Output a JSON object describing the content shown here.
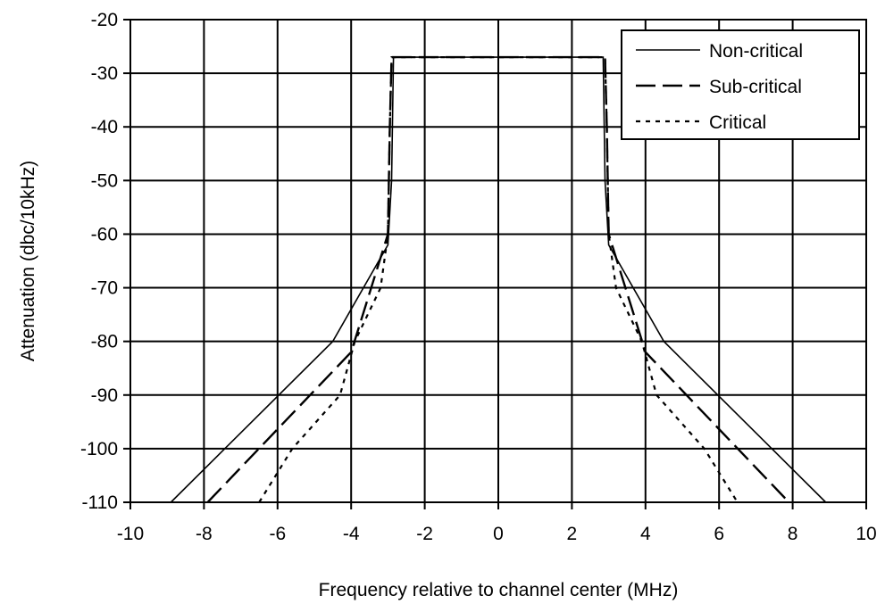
{
  "chart_data": {
    "type": "line",
    "title": "",
    "xlabel": "Frequency relative to channel center (MHz)",
    "ylabel": "Attenuation (dbc/10kHz)",
    "xlim": [
      -10,
      10
    ],
    "ylim": [
      -110,
      -20
    ],
    "xticks": [
      -10,
      -8,
      -6,
      -4,
      -2,
      0,
      2,
      4,
      6,
      8,
      10
    ],
    "yticks": [
      -20,
      -30,
      -40,
      -50,
      -60,
      -70,
      -80,
      -90,
      -100,
      -110
    ],
    "grid": true,
    "legend_position": "top-right",
    "series": [
      {
        "name": "Non-critical",
        "style": "solid",
        "points": [
          [
            -8.9,
            -110
          ],
          [
            -4.5,
            -80
          ],
          [
            -3.0,
            -62
          ],
          [
            -2.9,
            -50
          ],
          [
            -2.85,
            -27
          ],
          [
            2.85,
            -27
          ],
          [
            2.9,
            -50
          ],
          [
            3.0,
            -62
          ],
          [
            4.5,
            -80
          ],
          [
            8.9,
            -110
          ]
        ]
      },
      {
        "name": "Sub-critical",
        "style": "dashed",
        "points": [
          [
            -7.9,
            -110
          ],
          [
            -4.0,
            -82
          ],
          [
            -3.0,
            -60
          ],
          [
            -2.95,
            -40
          ],
          [
            -2.9,
            -27
          ],
          [
            2.9,
            -27
          ],
          [
            2.95,
            -40
          ],
          [
            3.0,
            -60
          ],
          [
            4.0,
            -82
          ],
          [
            7.9,
            -110
          ]
        ]
      },
      {
        "name": "Critical",
        "style": "dotted",
        "points": [
          [
            -6.5,
            -110
          ],
          [
            -5.6,
            -100
          ],
          [
            -4.3,
            -90
          ],
          [
            -3.9,
            -80
          ],
          [
            -3.2,
            -70
          ],
          [
            -3.0,
            -60
          ],
          [
            -2.95,
            -40
          ],
          [
            -2.9,
            -27
          ],
          [
            2.9,
            -27
          ],
          [
            2.95,
            -40
          ],
          [
            3.0,
            -60
          ],
          [
            3.2,
            -70
          ],
          [
            3.9,
            -80
          ],
          [
            4.3,
            -90
          ],
          [
            5.6,
            -100
          ],
          [
            6.5,
            -110
          ]
        ]
      }
    ]
  }
}
